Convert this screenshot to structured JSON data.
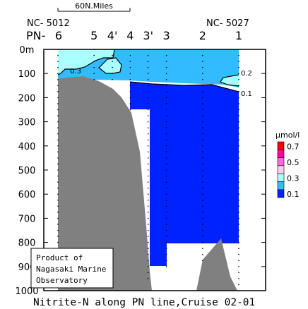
{
  "chart_data": {
    "type": "contour",
    "title": "Nitrite-N along PN line,Cruise 02-01",
    "scale_bar_label": "60N.Miles",
    "end_labels": {
      "left": "NC- 5012",
      "right": "NC- 5027"
    },
    "line_prefix": "PN-",
    "stations": [
      "6",
      "5",
      "4'",
      "4",
      "3'",
      "3",
      "2",
      "1"
    ],
    "station_positions_km": [
      0,
      93,
      140,
      186,
      232,
      279,
      372,
      465
    ],
    "depth_axis": {
      "label": "",
      "unit": "m",
      "range": [
        0,
        1000
      ],
      "ticks": [
        "0m",
        "100",
        "200",
        "300",
        "400",
        "500",
        "600",
        "700",
        "800",
        "900",
        "1000"
      ]
    },
    "legend": {
      "unit": "μmol/l",
      "levels": [
        {
          "value": "0.7",
          "color": "#ff0000"
        },
        {
          "value": "",
          "color": "#ff00aa"
        },
        {
          "value": "0.5",
          "color": "#ff66dd"
        },
        {
          "value": "",
          "color": "#ffccf0"
        },
        {
          "value": "0.3",
          "color": "#aaffff"
        },
        {
          "value": "",
          "color": "#33bbff"
        },
        {
          "value": "0.1",
          "color": "#0022ff"
        }
      ]
    },
    "contour_labels": [
      {
        "text": "0.3",
        "station_km": 40,
        "depth": 100
      },
      {
        "text": "0.2",
        "station_km": 475,
        "depth": 95
      },
      {
        "text": "0.1",
        "station_km": 475,
        "depth": 185
      }
    ],
    "colors": {
      "band_lt_0_1": "#0022ff",
      "band_0_1_to_0_2": "#33bbff",
      "band_0_2_to_0_3": "#aaffff",
      "topography": "#808080"
    },
    "credit_lines": [
      "Product of",
      "Nagasaki Marine",
      "Observatory"
    ]
  }
}
